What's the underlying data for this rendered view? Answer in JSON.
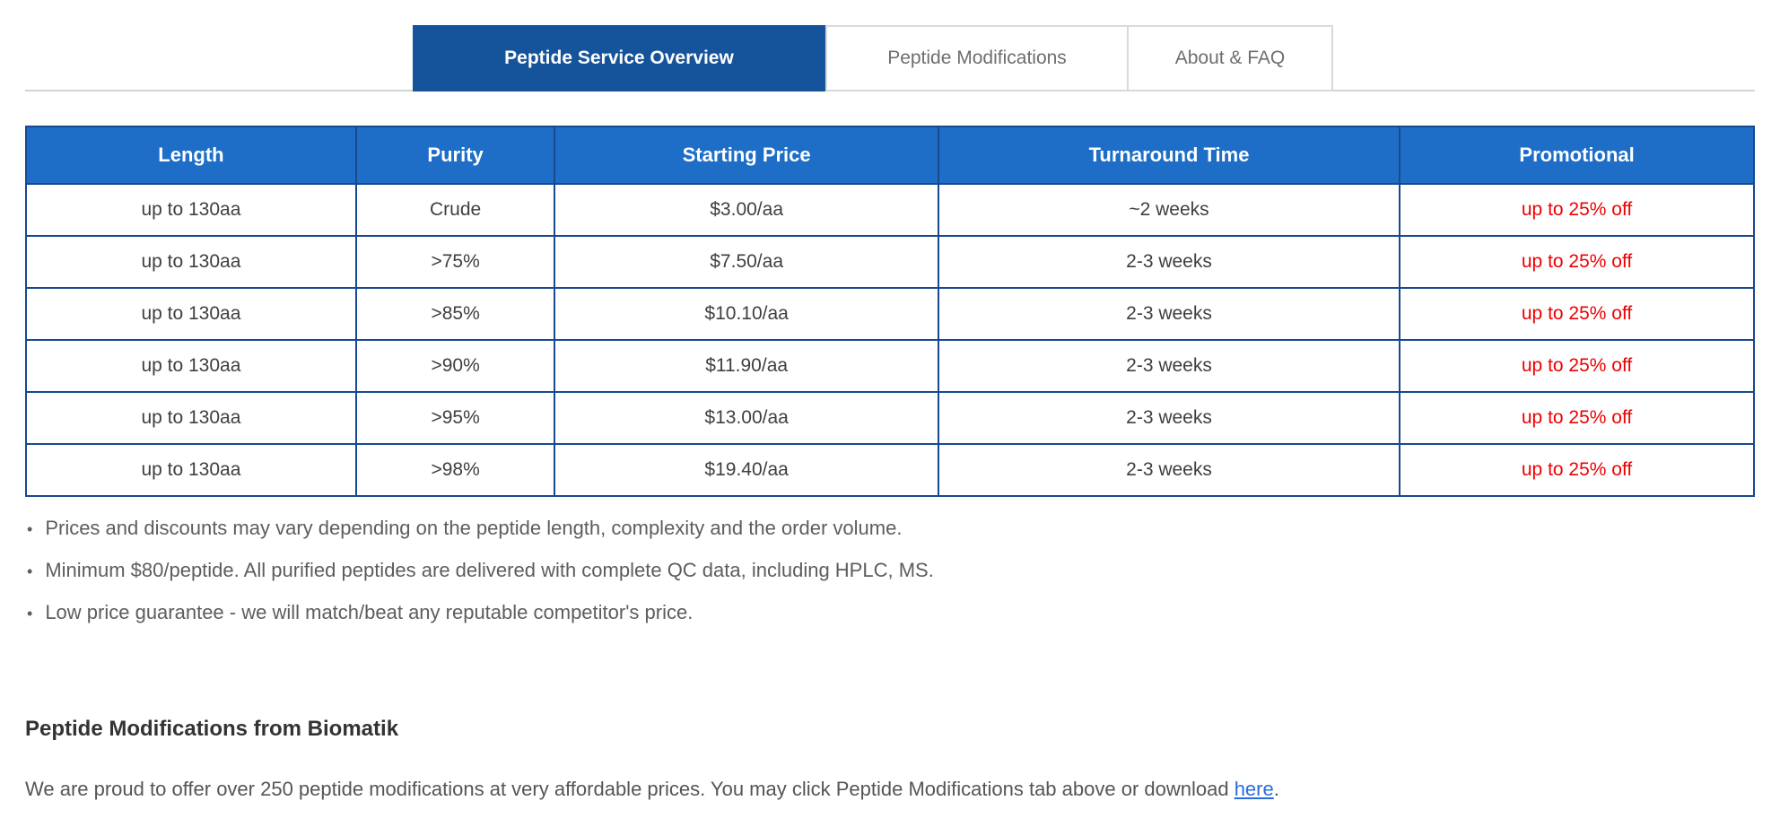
{
  "tabs": [
    {
      "label": "Peptide Service Overview",
      "active": true
    },
    {
      "label": "Peptide Modifications",
      "active": false
    },
    {
      "label": "About & FAQ",
      "active": false
    }
  ],
  "pricing_table": {
    "headers": [
      "Length",
      "Purity",
      "Starting Price",
      "Turnaround Time",
      "Promotional"
    ],
    "rows": [
      [
        "up to 130aa",
        "Crude",
        "$3.00/aa",
        "~2 weeks",
        "up to 25% off"
      ],
      [
        "up to 130aa",
        ">75%",
        "$7.50/aa",
        "2-3 weeks",
        "up to 25% off"
      ],
      [
        "up to 130aa",
        ">85%",
        "$10.10/aa",
        "2-3 weeks",
        "up to 25% off"
      ],
      [
        "up to 130aa",
        ">90%",
        "$11.90/aa",
        "2-3 weeks",
        "up to 25% off"
      ],
      [
        "up to 130aa",
        ">95%",
        "$13.00/aa",
        "2-3 weeks",
        "up to 25% off"
      ],
      [
        "up to 130aa",
        ">98%",
        "$19.40/aa",
        "2-3 weeks",
        "up to 25% off"
      ]
    ]
  },
  "notes": [
    "Prices and discounts may vary depending on the peptide length, complexity and the order volume.",
    "Minimum $80/peptide. All purified peptides are delivered with complete QC data, including HPLC, MS.",
    "Low price guarantee - we will match/beat any reputable competitor's price."
  ],
  "section": {
    "heading": "Peptide Modifications from Biomatik",
    "paragraph_before_link": "We are proud to offer over 250 peptide modifications at very affordable prices. You may click Peptide Modifications tab above or download ",
    "link_text": "here",
    "paragraph_after_link": "."
  },
  "colors": {
    "active_tab_bg": "#15549a",
    "table_header_bg": "#1e6ec8",
    "table_border": "#17498e",
    "promo_text": "#ee0000",
    "link": "#2a6cdf",
    "divider": "#d4d4d4"
  }
}
